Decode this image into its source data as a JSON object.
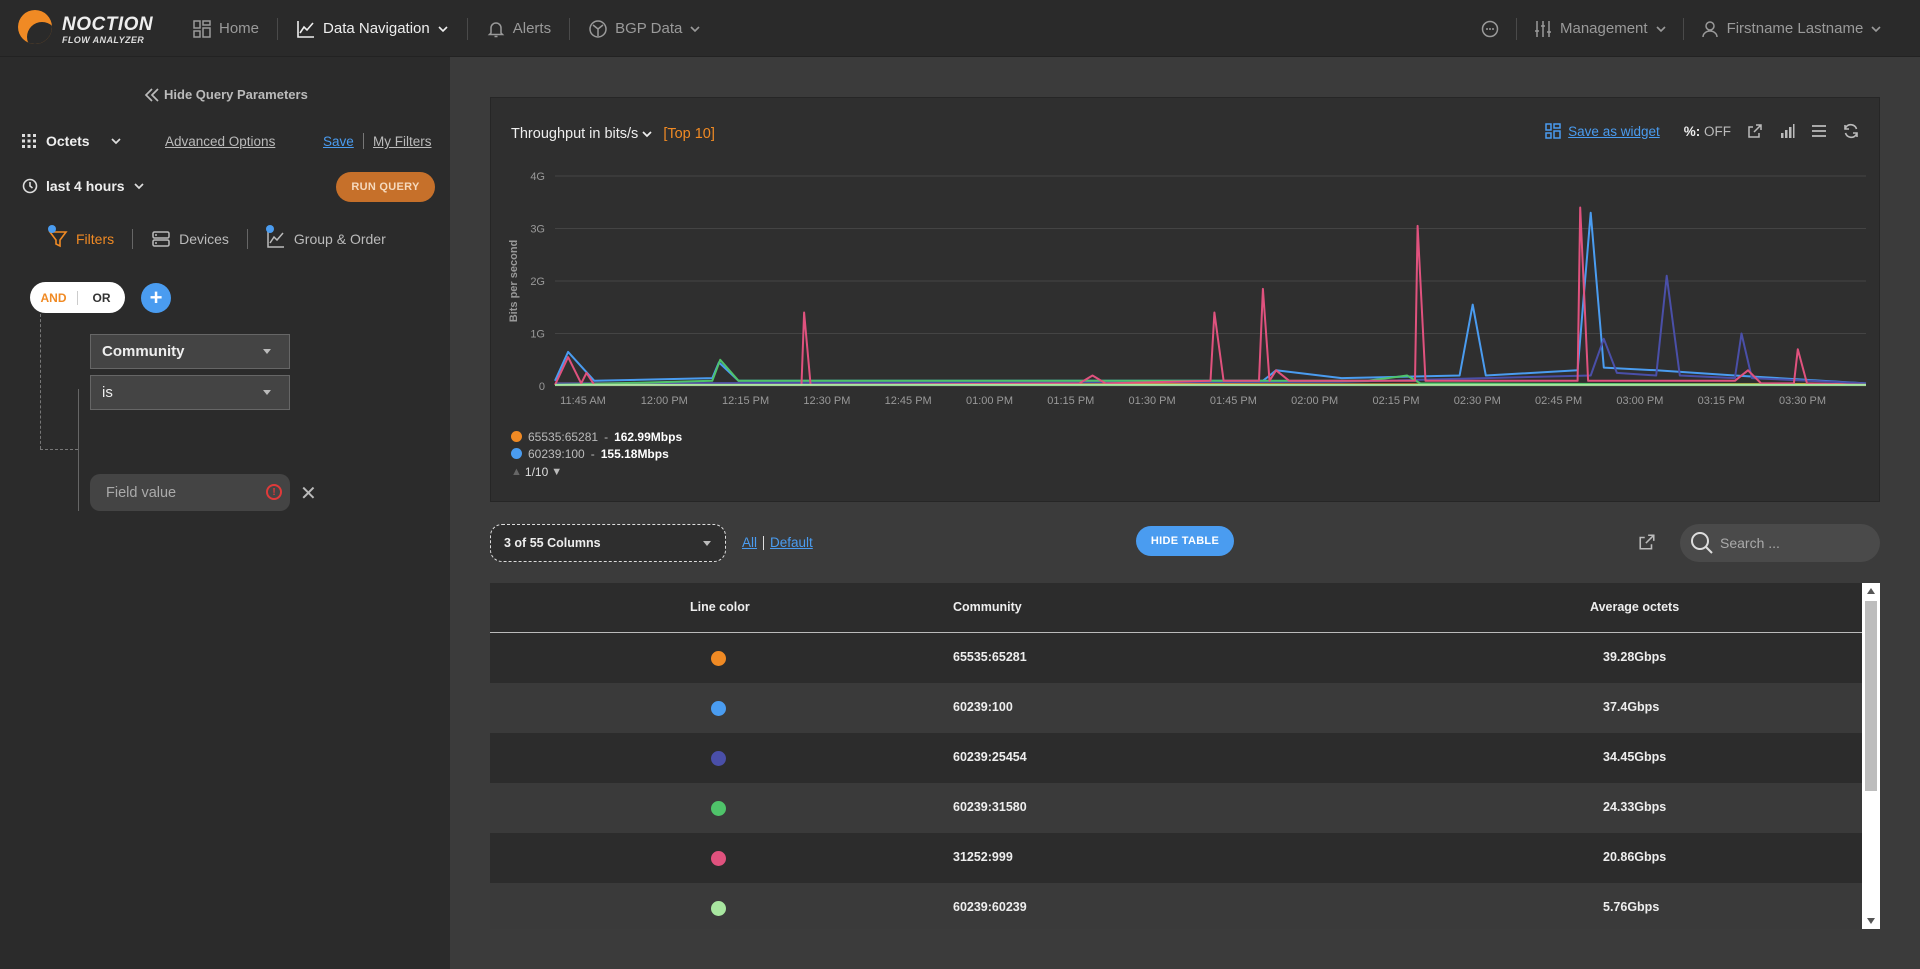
{
  "brand": {
    "name": "NOCTION",
    "sub": "FLOW ANALYZER"
  },
  "nav": {
    "home": "Home",
    "data_navigation": "Data Navigation",
    "alerts": "Alerts",
    "bgp_data": "BGP Data",
    "management": "Management",
    "user": "Firstname Lastname"
  },
  "query": {
    "hide_label": "Hide Query Parameters",
    "metric": "Octets",
    "advanced": "Advanced Options",
    "save": "Save",
    "my_filters": "My Filters",
    "time_range": "last 4 hours",
    "run": "RUN QUERY"
  },
  "tabs": {
    "filters": "Filters",
    "devices": "Devices",
    "group_order": "Group & Order"
  },
  "filter": {
    "and": "AND",
    "or": "OR",
    "field": "Community",
    "operator": "is",
    "value_placeholder": "Field value"
  },
  "chart_panel": {
    "title_prefix": "Throughput",
    "title_in": "in",
    "unit": "bits/s",
    "top": "[Top 10]",
    "save_widget": "Save as widget",
    "percent_label": "%:",
    "percent_value": "OFF",
    "legend": [
      {
        "name": "65535:65281",
        "value": "162.99Mbps",
        "color": "#f08a24"
      },
      {
        "name": "60239:100",
        "value": "155.18Mbps",
        "color": "#4a9cf0"
      }
    ],
    "pager": "1/10"
  },
  "chart_data": {
    "type": "line",
    "ylabel": "Bits per second",
    "y_ticks": [
      "0",
      "1G",
      "2G",
      "3G",
      "4G"
    ],
    "ylim": [
      0,
      4000000000
    ],
    "x_ticks": [
      "11:45 AM",
      "12:00 PM",
      "12:15 PM",
      "12:30 PM",
      "12:45 PM",
      "01:00 PM",
      "01:15 PM",
      "01:30 PM",
      "01:45 PM",
      "02:00 PM",
      "02:15 PM",
      "02:30 PM",
      "02:45 PM",
      "03:00 PM",
      "03:15 PM",
      "03:30 PM"
    ],
    "grid": true,
    "series": [
      {
        "name": "65535:65281",
        "color": "#f08a24",
        "points": [
          [
            0,
            0.05
          ],
          [
            0.3,
            0.05
          ],
          [
            0.6,
            0.03
          ],
          [
            1,
            0.04
          ]
        ]
      },
      {
        "name": "60239:100",
        "color": "#4a9cf0",
        "points": [
          [
            0,
            0.1
          ],
          [
            0.01,
            0.65
          ],
          [
            0.03,
            0.1
          ],
          [
            0.12,
            0.15
          ],
          [
            0.125,
            0.45
          ],
          [
            0.14,
            0.1
          ],
          [
            0.5,
            0.1
          ],
          [
            0.54,
            0.1
          ],
          [
            0.55,
            0.3
          ],
          [
            0.6,
            0.15
          ],
          [
            0.69,
            0.2
          ],
          [
            0.7,
            1.55
          ],
          [
            0.71,
            0.2
          ],
          [
            0.78,
            0.3
          ],
          [
            0.79,
            3.3
          ],
          [
            0.8,
            0.35
          ],
          [
            0.84,
            0.3
          ],
          [
            0.9,
            0.2
          ],
          [
            1,
            0.05
          ]
        ]
      },
      {
        "name": "60239:25454",
        "color": "#4a4fa8",
        "points": [
          [
            0,
            0.05
          ],
          [
            0.6,
            0.08
          ],
          [
            0.79,
            0.2
          ],
          [
            0.8,
            0.9
          ],
          [
            0.81,
            0.25
          ],
          [
            0.84,
            0.2
          ],
          [
            0.848,
            2.1
          ],
          [
            0.858,
            0.2
          ],
          [
            0.9,
            0.15
          ],
          [
            0.905,
            1.0
          ],
          [
            0.913,
            0.15
          ],
          [
            1,
            0.05
          ]
        ]
      },
      {
        "name": "60239:31580",
        "color": "#4fc36a",
        "points": [
          [
            0,
            0.02
          ],
          [
            0.12,
            0.1
          ],
          [
            0.126,
            0.5
          ],
          [
            0.14,
            0.1
          ],
          [
            0.62,
            0.1
          ],
          [
            0.65,
            0.2
          ],
          [
            0.66,
            0.05
          ],
          [
            1,
            0.02
          ]
        ]
      },
      {
        "name": "31252:999",
        "color": "#e0527e",
        "points": [
          [
            0,
            0.02
          ],
          [
            0.01,
            0.55
          ],
          [
            0.02,
            0.05
          ],
          [
            0.024,
            0.25
          ],
          [
            0.03,
            0.02
          ],
          [
            0.188,
            0.02
          ],
          [
            0.19,
            1.4
          ],
          [
            0.195,
            0.02
          ],
          [
            0.4,
            0.05
          ],
          [
            0.41,
            0.2
          ],
          [
            0.42,
            0.05
          ],
          [
            0.5,
            0.1
          ],
          [
            0.503,
            1.4
          ],
          [
            0.51,
            0.1
          ],
          [
            0.537,
            0.1
          ],
          [
            0.54,
            1.85
          ],
          [
            0.545,
            0.1
          ],
          [
            0.55,
            0.3
          ],
          [
            0.56,
            0.1
          ],
          [
            0.656,
            0.1
          ],
          [
            0.658,
            3.05
          ],
          [
            0.664,
            0.1
          ],
          [
            0.78,
            0.1
          ],
          [
            0.782,
            3.4
          ],
          [
            0.788,
            0.1
          ],
          [
            0.9,
            0.1
          ],
          [
            0.91,
            0.3
          ],
          [
            0.92,
            0.05
          ],
          [
            0.945,
            0.05
          ],
          [
            0.948,
            0.7
          ],
          [
            0.955,
            0.05
          ],
          [
            1,
            0.02
          ]
        ]
      },
      {
        "name": "60239:60239",
        "color": "#a8e6a0",
        "points": [
          [
            0,
            0.02
          ],
          [
            1,
            0.02
          ]
        ]
      }
    ]
  },
  "table_controls": {
    "columns": "3 of 55 Columns",
    "all": "All",
    "default": "Default",
    "hide_table": "HIDE TABLE",
    "search_placeholder": "Search ..."
  },
  "table": {
    "headers": [
      "Line color",
      "Community",
      "Average octets"
    ],
    "rows": [
      {
        "color": "#f08a24",
        "community": "65535:65281",
        "avg": "39.28Gbps"
      },
      {
        "color": "#4a9cf0",
        "community": "60239:100",
        "avg": "37.4Gbps"
      },
      {
        "color": "#4a4fa8",
        "community": "60239:25454",
        "avg": "34.45Gbps"
      },
      {
        "color": "#4fc36a",
        "community": "60239:31580",
        "avg": "24.33Gbps"
      },
      {
        "color": "#e0527e",
        "community": "31252:999",
        "avg": "20.86Gbps"
      },
      {
        "color": "#a8e6a0",
        "community": "60239:60239",
        "avg": "5.76Gbps"
      }
    ]
  }
}
